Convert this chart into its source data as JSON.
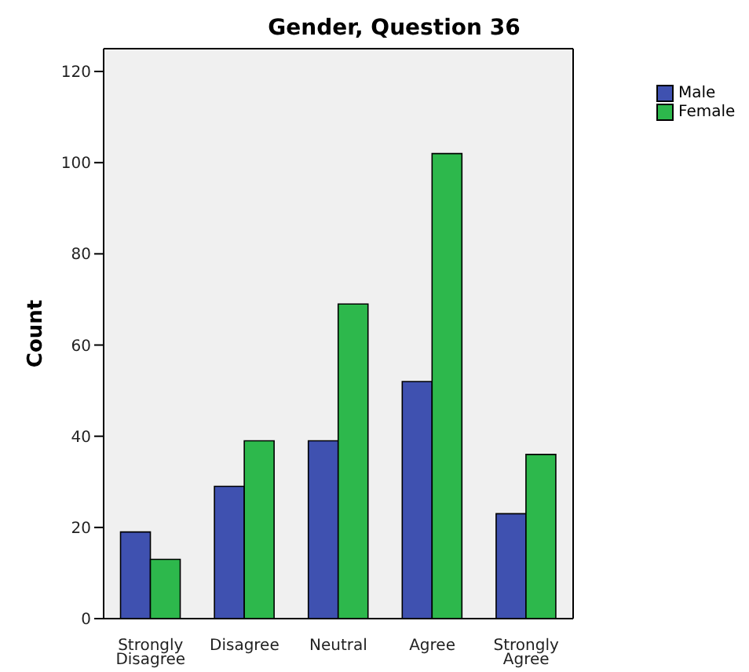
{
  "chart_data": {
    "type": "bar",
    "title": "Gender, Question 36",
    "ylabel": "Count",
    "categories": [
      "Strongly Disagree",
      "Disagree",
      "Neutral",
      "Agree",
      "Strongly Agree"
    ],
    "series": [
      {
        "name": "Male",
        "color": "#3f51b0",
        "values": [
          19,
          29,
          39,
          52,
          23
        ]
      },
      {
        "name": "Female",
        "color": "#2db84c",
        "values": [
          13,
          39,
          69,
          102,
          36
        ]
      }
    ],
    "ylim": [
      0,
      125
    ],
    "yticks": [
      0,
      20,
      40,
      60,
      80,
      100,
      120
    ],
    "grid": false,
    "legend": "top right"
  }
}
